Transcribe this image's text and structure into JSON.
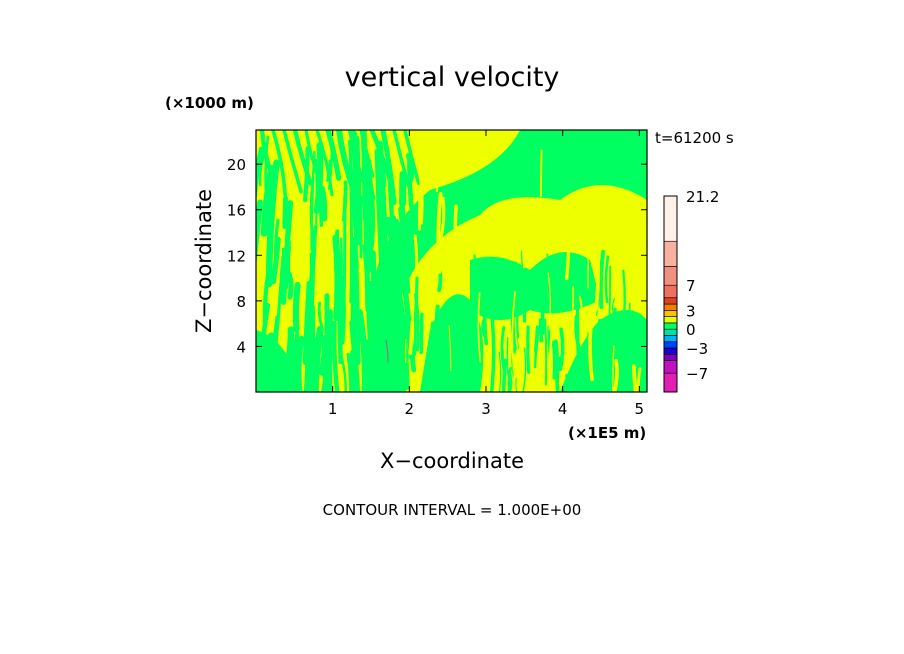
{
  "chart_data": {
    "type": "heatmap",
    "title": "vertical velocity",
    "xlabel": "X−coordinate",
    "ylabel": "Z−coordinate",
    "x_unit": "(×1E5 m)",
    "y_unit": "(×1000 m)",
    "time_label": "t=61200 s",
    "footer": "CONTOUR INTERVAL = 1.000E+00",
    "xlim": [
      0,
      5.1
    ],
    "ylim": [
      0,
      23
    ],
    "xticks": [
      1,
      2,
      3,
      4,
      5
    ],
    "yticks": [
      4,
      8,
      12,
      16,
      20
    ],
    "colorbar": {
      "range": [
        -10,
        21.2
      ],
      "labels": [
        {
          "value": 21.2,
          "text": "21.2"
        },
        {
          "value": 7,
          "text": "7"
        },
        {
          "value": 3,
          "text": "3"
        },
        {
          "value": 0,
          "text": "0"
        },
        {
          "value": -3,
          "text": "−3"
        },
        {
          "value": -7,
          "text": "−7"
        }
      ],
      "bands": [
        {
          "from": -10,
          "to": -7,
          "color": "#e020b0"
        },
        {
          "from": -7,
          "to": -5,
          "color": "#c010c0"
        },
        {
          "from": -5,
          "to": -4,
          "color": "#8000c0"
        },
        {
          "from": -4,
          "to": -3,
          "color": "#2000d0"
        },
        {
          "from": -3,
          "to": -2,
          "color": "#0040ff"
        },
        {
          "from": -2,
          "to": -1,
          "color": "#00b0ff"
        },
        {
          "from": -1,
          "to": 0,
          "color": "#00e0a0"
        },
        {
          "from": 0,
          "to": 1,
          "color": "#00ff60"
        },
        {
          "from": 1,
          "to": 2,
          "color": "#e8ff00"
        },
        {
          "from": 2,
          "to": 3,
          "color": "#ffc000"
        },
        {
          "from": 3,
          "to": 4,
          "color": "#f08000"
        },
        {
          "from": 4,
          "to": 5,
          "color": "#e04020"
        },
        {
          "from": 5,
          "to": 7,
          "color": "#f07060"
        },
        {
          "from": 7,
          "to": 10,
          "color": "#f09080"
        },
        {
          "from": 10,
          "to": 14,
          "color": "#f8b0a0"
        },
        {
          "from": 14,
          "to": 21.2,
          "color": "#fff0e8"
        }
      ]
    },
    "field_colors": {
      "positive": "#eeff00",
      "near_zero": "#00ff60",
      "line": "#808080"
    }
  }
}
